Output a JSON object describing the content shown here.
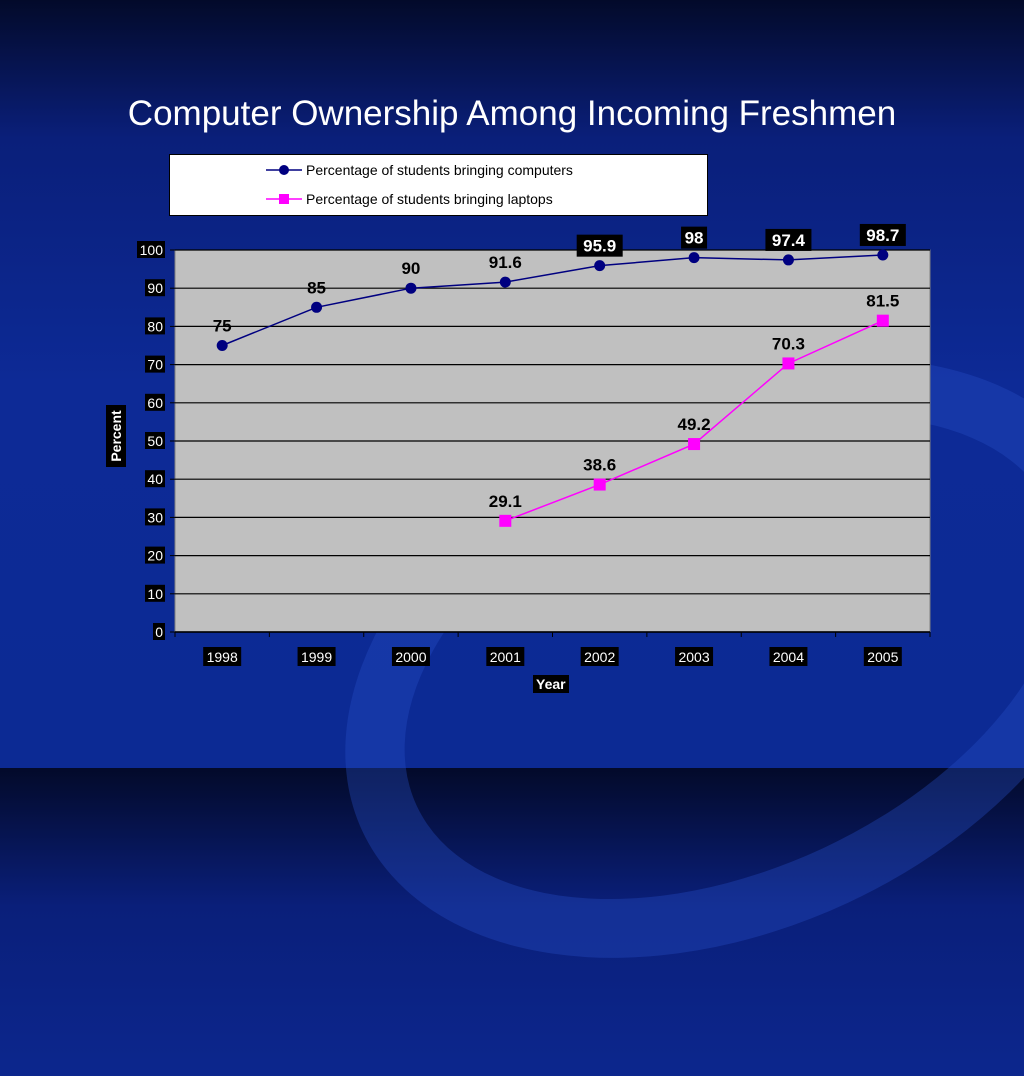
{
  "title": "Computer Ownership Among Incoming Freshmen",
  "colors": {
    "computers": "#000080",
    "laptops": "#ff00ff",
    "plot_bg": "#c0c0c0"
  },
  "chart_data": {
    "type": "line",
    "title": "Computer Ownership Among Incoming Freshmen",
    "xlabel": "Year",
    "ylabel": "Percent",
    "categories": [
      "1998",
      "1999",
      "2000",
      "2001",
      "2002",
      "2003",
      "2004",
      "2005"
    ],
    "ylim": [
      0,
      100
    ],
    "yticks": [
      "0",
      "10",
      "20",
      "30",
      "40",
      "50",
      "60",
      "70",
      "80",
      "90",
      "100"
    ],
    "grid": true,
    "legend": "top",
    "series": [
      {
        "name": "Percentage of students bringing computers",
        "marker": "circle",
        "values": [
          75,
          85,
          90,
          91.6,
          95.9,
          98,
          97.4,
          98.7
        ],
        "labels": [
          "75",
          "85",
          "90",
          "91.6",
          "95.9",
          "98",
          "97.4",
          "98.7"
        ]
      },
      {
        "name": "Percentage of students bringing laptops",
        "marker": "square",
        "values": [
          null,
          null,
          null,
          29.1,
          38.6,
          49.2,
          70.3,
          81.5
        ],
        "labels": [
          "",
          "",
          "",
          "29.1",
          "38.6",
          "49.2",
          "70.3",
          "81.5"
        ]
      }
    ]
  }
}
